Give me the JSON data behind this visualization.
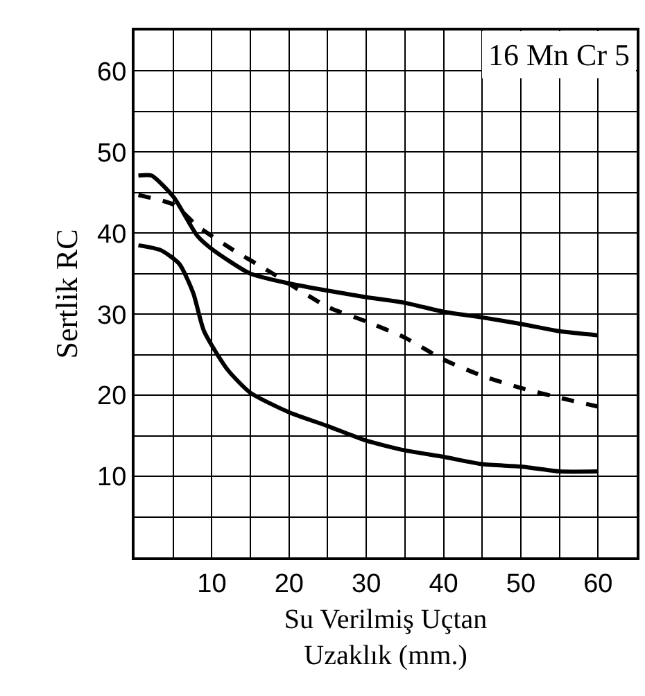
{
  "chart_data": {
    "type": "line",
    "xlabel": "Su Verilmiş Uçtan\nUzaklık (mm.)",
    "ylabel": "Sertlik RC",
    "annotations": [
      "16 Mn Cr 5"
    ],
    "xlim": [
      0,
      65
    ],
    "ylim": [
      0,
      65
    ],
    "xticks": [
      {
        "value": 5,
        "label": null
      },
      10,
      {
        "value": 15,
        "label": null
      },
      20,
      {
        "value": 25,
        "label": null
      },
      30,
      {
        "value": 35,
        "label": null
      },
      40,
      {
        "value": 45,
        "label": null
      },
      50,
      {
        "value": 55,
        "label": null
      },
      60
    ],
    "yticks": [
      {
        "value": 5,
        "label": null
      },
      10,
      {
        "value": 15,
        "label": null
      },
      20,
      {
        "value": 25,
        "label": null
      },
      30,
      {
        "value": 35,
        "label": null
      },
      40,
      {
        "value": 45,
        "label": null
      },
      50,
      {
        "value": 55,
        "label": null
      },
      60
    ],
    "grid": true,
    "series": [
      {
        "color": "#000000",
        "line_style": "solid",
        "x": [
          0.5,
          2.2,
          5.1,
          8.1,
          10.2,
          15,
          20,
          25,
          30,
          35,
          40,
          45,
          50,
          55,
          60
        ],
        "values": [
          47.1,
          47.1,
          44.4,
          39.7,
          37.9,
          35,
          33.8,
          32.9,
          32.1,
          31.4,
          30.3,
          29.6,
          28.8,
          27.9,
          27.4
        ]
      },
      {
        "color": "#000000",
        "line_style": "dashed",
        "x": [
          0.5,
          5.1,
          8.1,
          12.8,
          17.4,
          25,
          30,
          35,
          40,
          45,
          50,
          55,
          60
        ],
        "values": [
          44.7,
          43.5,
          40.9,
          37.9,
          35.3,
          30.9,
          29.1,
          27.1,
          24.4,
          22.4,
          20.9,
          19.7,
          18.6
        ]
      },
      {
        "color": "#000000",
        "line_style": "solid",
        "x": [
          0.5,
          3.4,
          5.8,
          7.6,
          9,
          12,
          15,
          20,
          25,
          30,
          35,
          40,
          45,
          50,
          55,
          60
        ],
        "values": [
          38.5,
          37.9,
          36.2,
          32.6,
          27.9,
          23.2,
          20.3,
          17.9,
          16.2,
          14.4,
          13.2,
          12.4,
          11.5,
          11.2,
          10.6,
          10.6
        ]
      }
    ]
  }
}
